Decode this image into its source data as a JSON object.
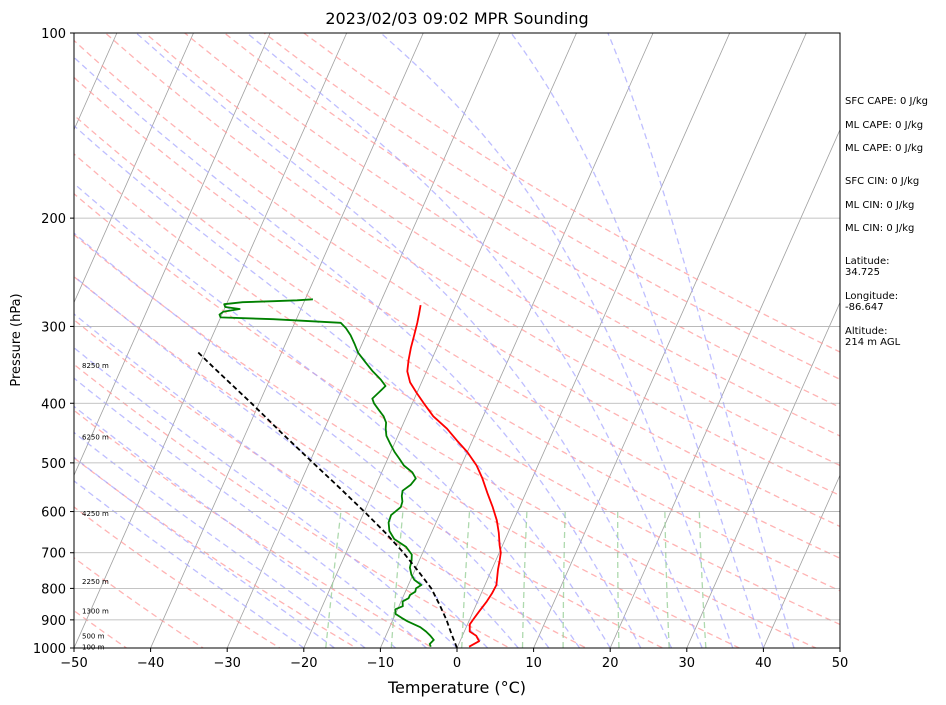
{
  "chart_data": {
    "type": "line",
    "title": "2023/02/03 09:02 MPR Sounding",
    "xlabel": "Temperature (°C)",
    "ylabel": "Pressure (hPa)",
    "xlim": [
      -50,
      50
    ],
    "ylim": [
      1000,
      100
    ],
    "y_scale": "log",
    "x_ticks": [
      -50,
      -40,
      -30,
      -20,
      -10,
      0,
      10,
      20,
      30,
      40,
      50
    ],
    "x_tick_labels": [
      "−50",
      "−40",
      "−30",
      "−20",
      "−10",
      "0",
      "10",
      "20",
      "30",
      "40",
      "50"
    ],
    "y_ticks": [
      1000,
      900,
      800,
      700,
      600,
      500,
      400,
      300,
      200,
      100
    ],
    "y_tick_labels": [
      "1000",
      "900",
      "800",
      "700",
      "600",
      "500",
      "400",
      "300",
      "200",
      "100"
    ],
    "grid": "horizontal at pressure ticks",
    "series": [
      {
        "color": "#ff0000",
        "points": [
          [
            1.5,
            995
          ],
          [
            2.5,
            975
          ],
          [
            1.8,
            955
          ],
          [
            0.7,
            940
          ],
          [
            0.3,
            915
          ],
          [
            0.5,
            895
          ],
          [
            0.8,
            870
          ],
          [
            1.2,
            840
          ],
          [
            1.4,
            815
          ],
          [
            1.5,
            790
          ],
          [
            1.2,
            770
          ],
          [
            0.8,
            745
          ],
          [
            0.5,
            720
          ],
          [
            0.2,
            700
          ],
          [
            -0.4,
            680
          ],
          [
            -1.2,
            650
          ],
          [
            -2.2,
            620
          ],
          [
            -3.5,
            590
          ],
          [
            -5,
            560
          ],
          [
            -6.5,
            530
          ],
          [
            -8,
            505
          ],
          [
            -10,
            480
          ],
          [
            -12,
            460
          ],
          [
            -14,
            440
          ],
          [
            -16.5,
            420
          ],
          [
            -18.5,
            400
          ],
          [
            -20,
            385
          ],
          [
            -21.5,
            370
          ],
          [
            -22.5,
            355
          ],
          [
            -23,
            340
          ],
          [
            -23.4,
            325
          ],
          [
            -23.7,
            310
          ],
          [
            -24,
            296
          ],
          [
            -24.3,
            286
          ],
          [
            -24.6,
            277
          ]
        ]
      },
      {
        "color": "#008000",
        "points": [
          [
            -3.5,
            995
          ],
          [
            -3.8,
            985
          ],
          [
            -3.5,
            970
          ],
          [
            -4.2,
            955
          ],
          [
            -5,
            940
          ],
          [
            -6,
            925
          ],
          [
            -8,
            905
          ],
          [
            -9,
            893
          ],
          [
            -10,
            880
          ],
          [
            -10.3,
            865
          ],
          [
            -9.5,
            855
          ],
          [
            -9.8,
            840
          ],
          [
            -9.2,
            830
          ],
          [
            -9.2,
            820
          ],
          [
            -8.7,
            810
          ],
          [
            -8.8,
            800
          ],
          [
            -8.3,
            790
          ],
          [
            -9.5,
            775
          ],
          [
            -10.2,
            760
          ],
          [
            -10.8,
            740
          ],
          [
            -11,
            720
          ],
          [
            -11.3,
            705
          ],
          [
            -12.5,
            685
          ],
          [
            -14.5,
            665
          ],
          [
            -15.6,
            645
          ],
          [
            -16.2,
            625
          ],
          [
            -16.3,
            608
          ],
          [
            -15.5,
            590
          ],
          [
            -15.6,
            578
          ],
          [
            -16,
            566
          ],
          [
            -16.2,
            555
          ],
          [
            -15.5,
            543
          ],
          [
            -15.2,
            530
          ],
          [
            -16,
            518
          ],
          [
            -17.5,
            505
          ],
          [
            -18.5,
            492
          ],
          [
            -19.5,
            480
          ],
          [
            -20.5,
            466
          ],
          [
            -21.5,
            452
          ],
          [
            -22,
            440
          ],
          [
            -22.3,
            430
          ],
          [
            -23,
            420
          ],
          [
            -24,
            410
          ],
          [
            -25,
            400
          ],
          [
            -25.5,
            393
          ],
          [
            -25,
            384
          ],
          [
            -24.5,
            375
          ],
          [
            -25.5,
            366
          ],
          [
            -27,
            355
          ],
          [
            -28.5,
            343
          ],
          [
            -30,
            331
          ],
          [
            -31,
            320
          ],
          [
            -32,
            310
          ],
          [
            -33,
            302
          ],
          [
            -34,
            296
          ],
          [
            -43,
            292
          ],
          [
            -50,
            290
          ],
          [
            -50.3,
            287
          ],
          [
            -50,
            284
          ],
          [
            -48,
            281
          ],
          [
            -50,
            279
          ],
          [
            -50.3,
            276
          ],
          [
            -48,
            274
          ],
          [
            -44,
            273
          ],
          [
            -41,
            272
          ],
          [
            -39,
            271
          ]
        ]
      },
      {
        "name": "parcel",
        "color": "#000000",
        "style": "dashed",
        "points": [
          [
            0,
            1000
          ],
          [
            -1.5,
            950
          ],
          [
            -3,
            900
          ],
          [
            -4.8,
            850
          ],
          [
            -6.8,
            800
          ],
          [
            -9.5,
            750
          ],
          [
            -12.5,
            700
          ],
          [
            -16,
            650
          ],
          [
            -20,
            600
          ],
          [
            -24.5,
            550
          ],
          [
            -29.5,
            500
          ],
          [
            -35,
            450
          ],
          [
            -41,
            400
          ],
          [
            -48,
            350
          ],
          [
            -51,
            330
          ]
        ]
      }
    ],
    "height_labels": [
      "100 m",
      "500 m",
      "1300 m",
      "2250 m",
      "4250 m",
      "6250 m",
      "8250 m"
    ],
    "height_label_pressures": [
      998,
      957,
      873,
      781,
      605,
      455,
      348
    ],
    "side_info": [
      "SFC CAPE: 0 J/kg",
      "ML CAPE: 0 J/kg",
      "ML CAPE: 0 J/kg",
      "SFC CIN: 0 J/kg",
      "ML CIN: 0 J/kg",
      "ML CIN: 0 J/kg",
      "Latitude:",
      "34.725",
      "Longitude:",
      "-86.647",
      "Altitude:",
      "214 m AGL"
    ],
    "background_colors": {
      "isotherms": "#a0a0a0",
      "dry_adiabats": "#ff9a9a",
      "moist_adiabats": "#a8a8ff",
      "mixing_ratio": "#9acf9a"
    }
  }
}
